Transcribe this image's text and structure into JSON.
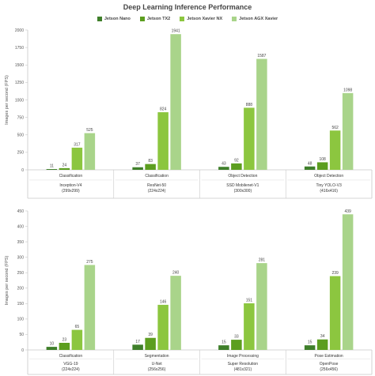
{
  "title": "Deep Learning Inference Performance",
  "colors": [
    "#3f7f2a",
    "#5c9e1f",
    "#8cc63f",
    "#a9d48a"
  ],
  "chart_data": [
    {
      "type": "bar",
      "title": "Deep Learning Inference Performance",
      "ylabel": "Images per second (FPS)",
      "ylim": [
        0,
        2000
      ],
      "yticks": [
        0,
        250,
        500,
        750,
        1000,
        1250,
        1500,
        1750,
        2000
      ],
      "legend_position": "top",
      "grid": false,
      "categories": [
        {
          "task": "Classification",
          "model": "Inception-V4",
          "size": "(299x299)"
        },
        {
          "task": "Classification",
          "model": "ResNet-50",
          "size": "(224x224)"
        },
        {
          "task": "Object Detection",
          "model": "SSD Mobilenet-V1",
          "size": "(300x300)"
        },
        {
          "task": "Object Detection",
          "model": "Tiny YOLO-V3",
          "size": "(416x416)"
        }
      ],
      "series": [
        {
          "name": "Jetson Nano",
          "values": [
            11,
            37,
            43,
            48
          ]
        },
        {
          "name": "Jetson TX2",
          "values": [
            24,
            83,
            92,
            108
          ]
        },
        {
          "name": "Jetson Xavier NX",
          "values": [
            317,
            824,
            888,
            562
          ]
        },
        {
          "name": "Jetson AGX Xavier",
          "values": [
            525,
            1941,
            1587,
            1098
          ]
        }
      ]
    },
    {
      "type": "bar",
      "ylabel": "Images per second (FPS)",
      "ylim": [
        0,
        450
      ],
      "yticks": [
        0,
        50,
        100,
        150,
        200,
        250,
        300,
        350,
        400,
        450
      ],
      "grid": false,
      "categories": [
        {
          "task": "Classification",
          "model": "VGG-19",
          "size": "(224x224)"
        },
        {
          "task": "Segmentation",
          "model": "U-Net",
          "size": "(256x256)"
        },
        {
          "task": "Image Processing",
          "model": "Super Resolution",
          "size": "(481x321)"
        },
        {
          "task": "Pose Estimation",
          "model": "OpenPose",
          "size": "(256x456)"
        }
      ],
      "series": [
        {
          "name": "Jetson Nano",
          "values": [
            10,
            17,
            15,
            15
          ]
        },
        {
          "name": "Jetson TX2",
          "values": [
            23,
            39,
            33,
            34
          ]
        },
        {
          "name": "Jetson Xavier NX",
          "values": [
            65,
            146,
            151,
            239
          ]
        },
        {
          "name": "Jetson AGX Xavier",
          "values": [
            275,
            240,
            281,
            439
          ]
        }
      ]
    }
  ]
}
